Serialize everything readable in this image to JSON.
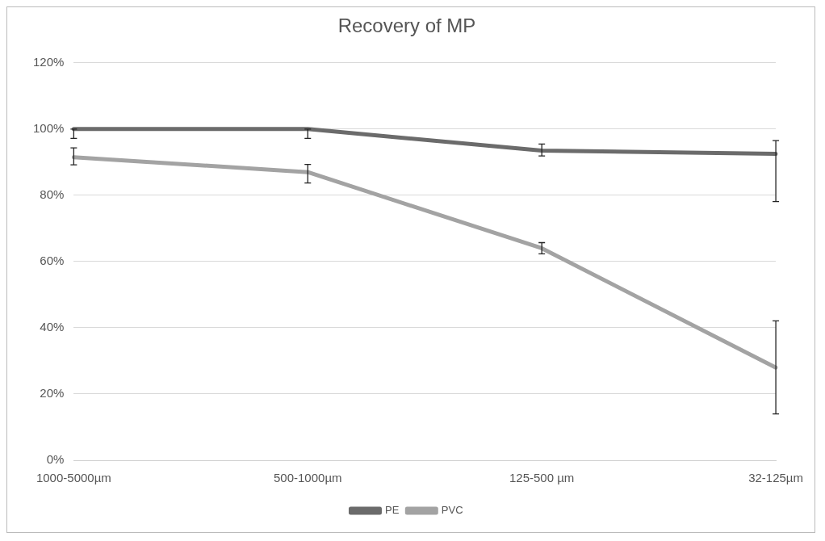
{
  "chart_data": {
    "type": "line",
    "title": "Recovery of MP",
    "categories": [
      "1000-5000µm",
      "500-1000µm",
      "125-500 µm",
      "32-125µm"
    ],
    "series": [
      {
        "name": "PE",
        "color": "#6b6b6b",
        "values": [
          100,
          100,
          93.5,
          92.5
        ],
        "errors": [
          [
            97.2,
            100
          ],
          [
            97.2,
            100
          ],
          [
            91.9,
            95.5
          ],
          [
            78.1,
            96.5
          ]
        ]
      },
      {
        "name": "PVC",
        "color": "#a3a3a3",
        "values": [
          91.5,
          87,
          64,
          28
        ],
        "errors": [
          [
            89.2,
            94.3
          ],
          [
            83.7,
            89.3
          ],
          [
            62.3,
            65.7
          ],
          [
            14,
            42.1
          ]
        ]
      }
    ],
    "ylim": [
      0,
      120
    ],
    "yticks": [
      {
        "value": 0,
        "label": "0%"
      },
      {
        "value": 20,
        "label": "20%"
      },
      {
        "value": 40,
        "label": "40%"
      },
      {
        "value": 60,
        "label": "60%"
      },
      {
        "value": 80,
        "label": "80%"
      },
      {
        "value": 100,
        "label": "100%"
      },
      {
        "value": 120,
        "label": "120%"
      }
    ],
    "grid": "y",
    "legend": "bottom",
    "marker": "none",
    "line_style": "solid"
  }
}
